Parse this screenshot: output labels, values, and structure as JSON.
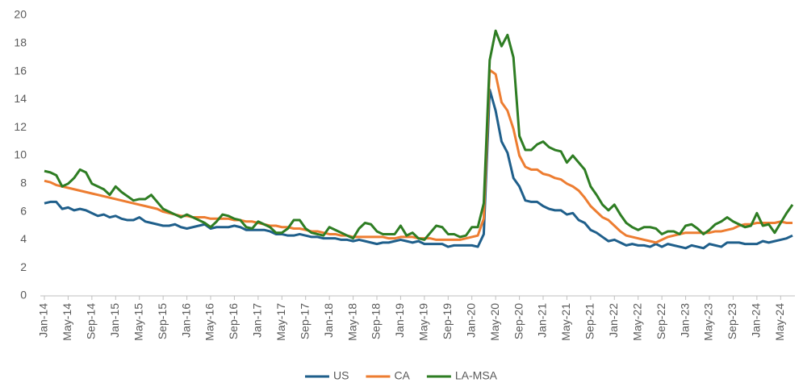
{
  "chart_data": {
    "type": "line",
    "categories": [
      "Jan-14",
      null,
      null,
      null,
      "May-14",
      null,
      null,
      null,
      "Sep-14",
      null,
      null,
      null,
      "Jan-15",
      null,
      null,
      null,
      "May-15",
      null,
      null,
      null,
      "Sep-15",
      null,
      null,
      null,
      "Jan-16",
      null,
      null,
      null,
      "May-16",
      null,
      null,
      null,
      "Sep-16",
      null,
      null,
      null,
      "Jan-17",
      null,
      null,
      null,
      "May-17",
      null,
      null,
      null,
      "Sep-17",
      null,
      null,
      null,
      "Jan-18",
      null,
      null,
      null,
      "May-18",
      null,
      null,
      null,
      "Sep-18",
      null,
      null,
      null,
      "Jan-19",
      null,
      null,
      null,
      "May-19",
      null,
      null,
      null,
      "Sep-19",
      null,
      null,
      null,
      "Jan-20",
      null,
      null,
      null,
      "May-20",
      null,
      null,
      null,
      "Sep-20",
      null,
      null,
      null,
      "Jan-21",
      null,
      null,
      null,
      "May-21",
      null,
      null,
      null,
      "Sep-21",
      null,
      null,
      null,
      "Jan-22",
      null,
      null,
      null,
      "May-22",
      null,
      null,
      null,
      "Sep-22",
      null,
      null,
      null,
      "Jan-23",
      null,
      null,
      null,
      "May-23",
      null,
      null,
      null,
      "Sep-23",
      null,
      null,
      null,
      "Jan-24",
      null,
      null,
      null,
      "May-24",
      null,
      null
    ],
    "series": [
      {
        "name": "US",
        "color": "#1f5f8b",
        "values": [
          6.6,
          6.7,
          6.7,
          6.2,
          6.3,
          6.1,
          6.2,
          6.1,
          5.9,
          5.7,
          5.8,
          5.6,
          5.7,
          5.5,
          5.4,
          5.4,
          5.6,
          5.3,
          5.2,
          5.1,
          5.0,
          5.0,
          5.1,
          4.9,
          4.8,
          4.9,
          5.0,
          5.1,
          4.8,
          4.9,
          4.9,
          4.9,
          5.0,
          4.9,
          4.7,
          4.7,
          4.7,
          4.7,
          4.6,
          4.4,
          4.4,
          4.3,
          4.3,
          4.4,
          4.3,
          4.2,
          4.2,
          4.1,
          4.1,
          4.1,
          4.0,
          4.0,
          3.9,
          4.0,
          3.9,
          3.8,
          3.7,
          3.8,
          3.8,
          3.9,
          4.0,
          3.9,
          3.8,
          3.9,
          3.7,
          3.7,
          3.7,
          3.7,
          3.5,
          3.6,
          3.6,
          3.6,
          3.6,
          3.5,
          4.4,
          14.7,
          13.2,
          11.0,
          10.2,
          8.4,
          7.8,
          6.8,
          6.7,
          6.7,
          6.4,
          6.2,
          6.1,
          6.1,
          5.8,
          5.9,
          5.4,
          5.2,
          4.7,
          4.5,
          4.2,
          3.9,
          4.0,
          3.8,
          3.6,
          3.7,
          3.6,
          3.6,
          3.5,
          3.7,
          3.5,
          3.7,
          3.6,
          3.5,
          3.4,
          3.6,
          3.5,
          3.4,
          3.7,
          3.6,
          3.5,
          3.8,
          3.8,
          3.8,
          3.7,
          3.7,
          3.7,
          3.9,
          3.8,
          3.9,
          4.0,
          4.1,
          4.3
        ]
      },
      {
        "name": "CA",
        "color": "#ed7d31",
        "values": [
          8.2,
          8.1,
          7.9,
          7.8,
          7.7,
          7.6,
          7.5,
          7.4,
          7.3,
          7.2,
          7.1,
          7.0,
          6.9,
          6.8,
          6.7,
          6.6,
          6.5,
          6.4,
          6.3,
          6.2,
          6.0,
          5.9,
          5.8,
          5.7,
          5.7,
          5.6,
          5.6,
          5.6,
          5.5,
          5.5,
          5.5,
          5.5,
          5.4,
          5.4,
          5.3,
          5.3,
          5.2,
          5.1,
          5.0,
          5.0,
          4.9,
          4.9,
          4.8,
          4.8,
          4.7,
          4.6,
          4.6,
          4.5,
          4.4,
          4.4,
          4.3,
          4.3,
          4.2,
          4.2,
          4.2,
          4.2,
          4.2,
          4.2,
          4.1,
          4.1,
          4.2,
          4.2,
          4.2,
          4.1,
          4.1,
          4.1,
          4.0,
          4.0,
          4.0,
          4.0,
          4.0,
          4.1,
          4.2,
          4.3,
          5.5,
          16.1,
          15.8,
          13.8,
          13.2,
          11.9,
          10.0,
          9.2,
          9.0,
          9.0,
          8.7,
          8.6,
          8.4,
          8.3,
          8.0,
          7.8,
          7.5,
          7.0,
          6.4,
          6.0,
          5.6,
          5.4,
          5.0,
          4.6,
          4.3,
          4.2,
          4.1,
          4.0,
          3.9,
          3.8,
          4.0,
          4.2,
          4.3,
          4.4,
          4.5,
          4.5,
          4.5,
          4.5,
          4.5,
          4.6,
          4.6,
          4.7,
          4.8,
          5.0,
          5.1,
          5.1,
          5.2,
          5.2,
          5.2,
          5.2,
          5.3,
          5.2,
          5.2
        ]
      },
      {
        "name": "LA-MSA",
        "color": "#2e7d23",
        "values": [
          8.9,
          8.8,
          8.6,
          7.8,
          8.0,
          8.4,
          9.0,
          8.8,
          8.0,
          7.8,
          7.6,
          7.2,
          7.8,
          7.4,
          7.1,
          6.8,
          6.9,
          6.9,
          7.2,
          6.7,
          6.2,
          6.0,
          5.8,
          5.6,
          5.8,
          5.6,
          5.4,
          5.2,
          4.9,
          5.3,
          5.8,
          5.7,
          5.5,
          5.4,
          4.9,
          4.8,
          5.3,
          5.1,
          4.9,
          4.5,
          4.5,
          4.8,
          5.4,
          5.4,
          4.8,
          4.5,
          4.4,
          4.3,
          4.9,
          4.7,
          4.5,
          4.3,
          4.1,
          4.8,
          5.2,
          5.1,
          4.6,
          4.4,
          4.4,
          4.4,
          5.0,
          4.3,
          4.5,
          4.1,
          4.0,
          4.5,
          5.0,
          4.9,
          4.4,
          4.4,
          4.2,
          4.3,
          4.9,
          4.9,
          6.6,
          16.8,
          18.9,
          17.8,
          18.6,
          17.0,
          11.4,
          10.4,
          10.4,
          10.8,
          11.0,
          10.6,
          10.4,
          10.3,
          9.5,
          10.0,
          9.5,
          9.0,
          7.8,
          7.2,
          6.5,
          6.1,
          6.5,
          5.8,
          5.2,
          4.9,
          4.7,
          4.9,
          4.9,
          4.8,
          4.4,
          4.6,
          4.6,
          4.4,
          5.0,
          5.1,
          4.8,
          4.4,
          4.7,
          5.1,
          5.3,
          5.6,
          5.3,
          5.1,
          4.9,
          5.0,
          5.9,
          5.0,
          5.1,
          4.5,
          5.2,
          5.9,
          6.5
        ]
      }
    ],
    "ylim": [
      0,
      20
    ],
    "yticks": [
      0,
      2,
      4,
      6,
      8,
      10,
      12,
      14,
      16,
      18,
      20
    ],
    "grid": false,
    "legend": "bottom"
  }
}
